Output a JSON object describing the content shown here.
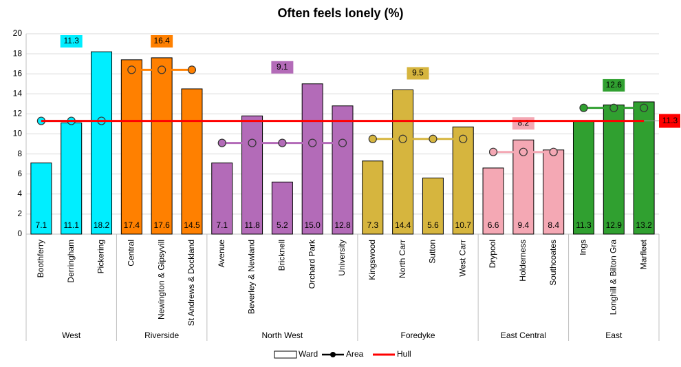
{
  "chart_data": {
    "type": "bar",
    "title": "Often feels lonely (%)",
    "ylim": [
      0,
      20
    ],
    "yticks": [
      0,
      2,
      4,
      6,
      8,
      10,
      12,
      14,
      16,
      18,
      20
    ],
    "grid": true,
    "legend": "bottom",
    "series": [
      {
        "name": "Ward",
        "color": "#ffffff"
      },
      {
        "name": "Area",
        "color": "#000000"
      },
      {
        "name": "Hull",
        "color": "#ff0000",
        "value": 11.3
      }
    ],
    "groups": [
      {
        "name": "West",
        "color": "#00eeff",
        "categories": [
          "Boothferry",
          "Derringham",
          "Pickering"
        ],
        "values": [
          7.1,
          11.1,
          18.2
        ],
        "value_labels": [
          "7.1",
          "11.1",
          "18.2"
        ],
        "area": 11.3
      },
      {
        "name": "Riverside",
        "color": "#ff8000",
        "categories": [
          "Central",
          "Newington & Gipsyvill",
          "St Andrews & Dockland"
        ],
        "values": [
          17.4,
          17.6,
          14.5
        ],
        "value_labels": [
          "17.4",
          "17.6",
          "14.5"
        ],
        "area": 16.4
      },
      {
        "name": "North West",
        "color": "#b36bb8",
        "categories": [
          "Avenue",
          "Beverley & Newland",
          "Bricknell",
          "Orchard Park",
          "University"
        ],
        "values": [
          7.1,
          11.8,
          5.2,
          15.0,
          12.8
        ],
        "value_labels": [
          "7.1",
          "11.8",
          "5.2",
          "15.0",
          "12.8"
        ],
        "area": 9.1
      },
      {
        "name": "Foredyke",
        "color": "#d6b53e",
        "categories": [
          "Kingswood",
          "North Carr",
          "Sutton",
          "West Carr"
        ],
        "values": [
          7.3,
          14.4,
          5.6,
          10.7
        ],
        "value_labels": [
          "7.3",
          "14.4",
          "5.6",
          "10.7"
        ],
        "area": 9.5
      },
      {
        "name": "East Central",
        "color": "#f4a8b4",
        "categories": [
          "Drypool",
          "Holderness",
          "Southcoates"
        ],
        "values": [
          6.6,
          9.4,
          8.4
        ],
        "value_labels": [
          "6.6",
          "9.4",
          "8.4"
        ],
        "area": 8.2
      },
      {
        "name": "East",
        "color": "#30a030",
        "categories": [
          "Ings",
          "Longhill & Bilton Gra",
          "Marfleet"
        ],
        "values": [
          11.3,
          12.9,
          13.2
        ],
        "value_labels": [
          "11.3",
          "12.9",
          "13.2"
        ],
        "area": 12.6
      }
    ]
  }
}
